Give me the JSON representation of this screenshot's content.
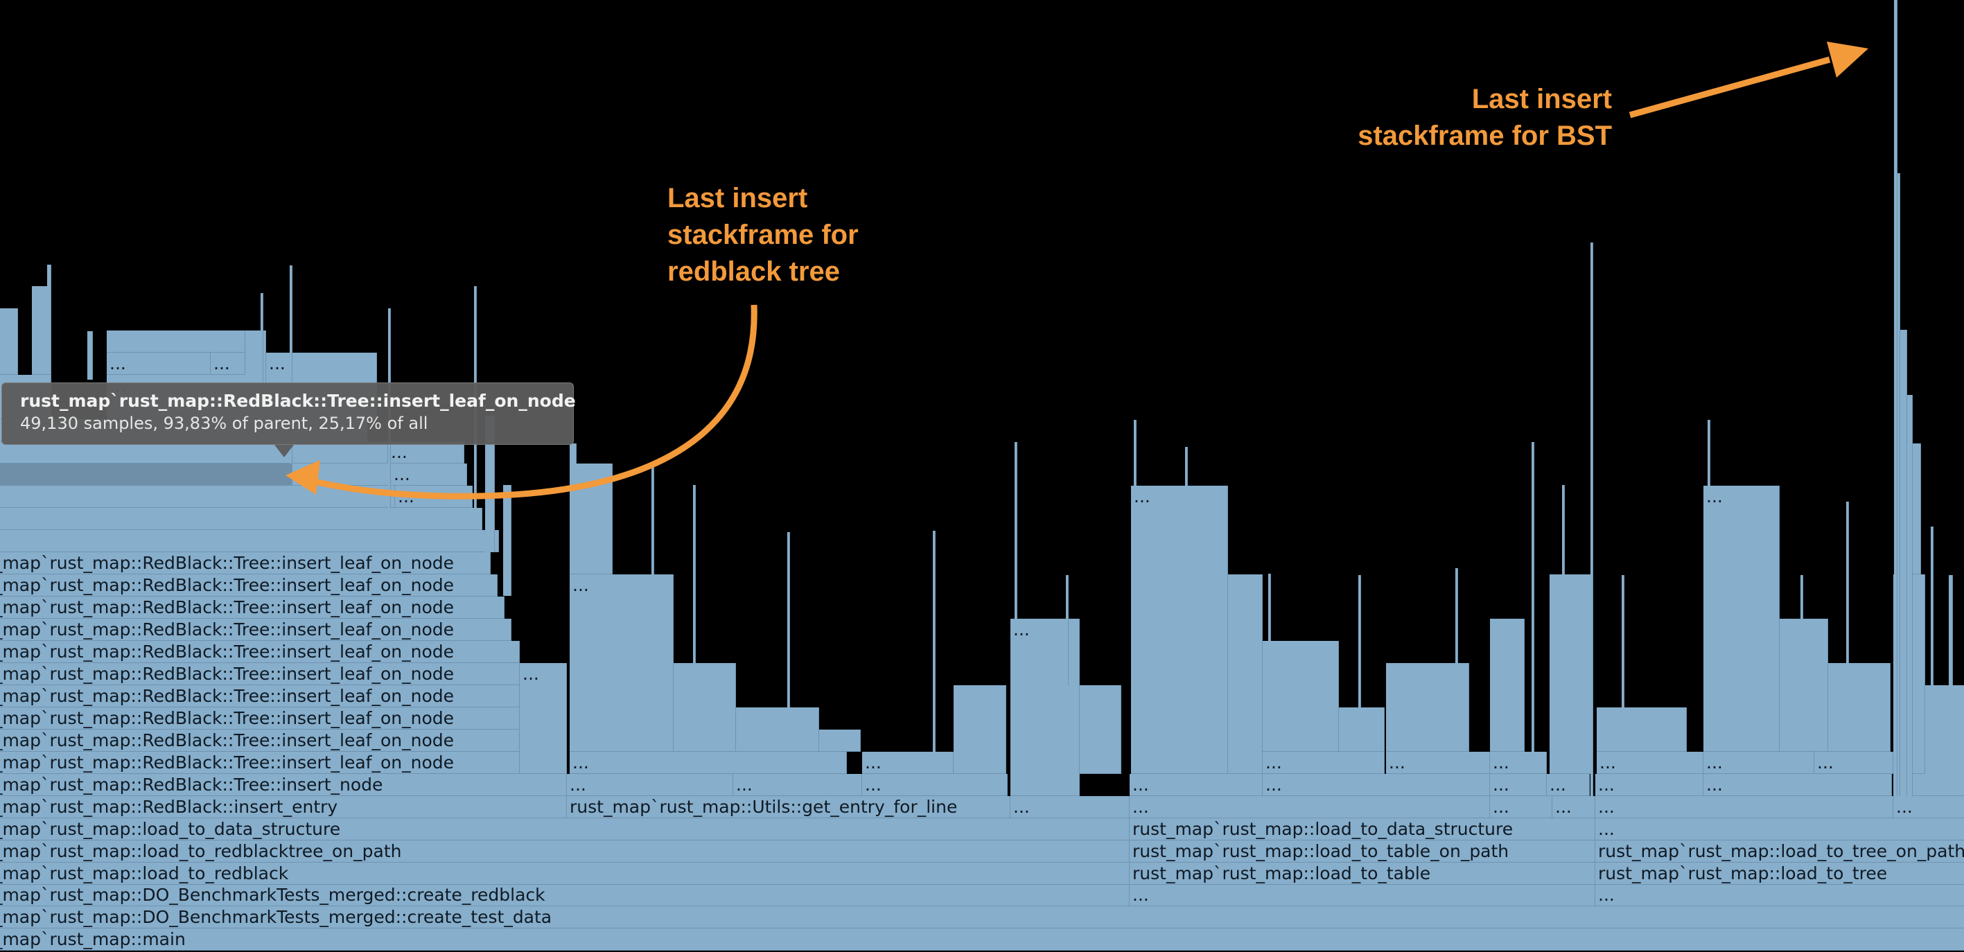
{
  "frames": {
    "rb_leaf": "rust_map`rust_map::RedBlack::Tree::insert_leaf_on_node",
    "rb_insert_node": "rust_map`rust_map::RedBlack::Tree::insert_node",
    "rb_insert_entry": "rust_map`rust_map::RedBlack::insert_entry",
    "get_entry_for_line": "rust_map`rust_map::Utils::get_entry_for_line",
    "load_to_data_structure": "rust_map`rust_map::load_to_data_structure",
    "load_to_redblacktree_on_path": "rust_map`rust_map::load_to_redblacktree_on_path",
    "load_to_redblack": "rust_map`rust_map::load_to_redblack",
    "create_redblack": "rust_map`rust_map::DO_BenchmarkTests_merged::create_redblack",
    "create_test_data": "rust_map`rust_map::DO_BenchmarkTests_merged::create_test_data",
    "main": "rust_map`rust_map::main",
    "load_to_table_on_path": "rust_map`rust_map::load_to_table_on_path",
    "load_to_table": "rust_map`rust_map::load_to_table",
    "load_to_tree_on_path": "rust_map`rust_map::load_to_tree_on_path",
    "load_to_tree": "rust_map`rust_map::load_to_tree",
    "ellipsis": "..."
  },
  "tooltip": {
    "title": "rust_map`rust_map::RedBlack::Tree::insert_leaf_on_node",
    "stats": "49,130 samples, 93,83% of parent, 25,17% of all"
  },
  "annotations": {
    "bst": [
      "Last  insert",
      "stackframe for BST"
    ],
    "redblack": [
      "Last  insert",
      "stackframe for",
      "redblack tree"
    ]
  },
  "colors": {
    "background": "#000000",
    "frame": "#87aecb",
    "frame_highlight": "#6f8fa9",
    "annotation": "#f39a3b",
    "tooltip_bg": "#5c5c5c"
  }
}
